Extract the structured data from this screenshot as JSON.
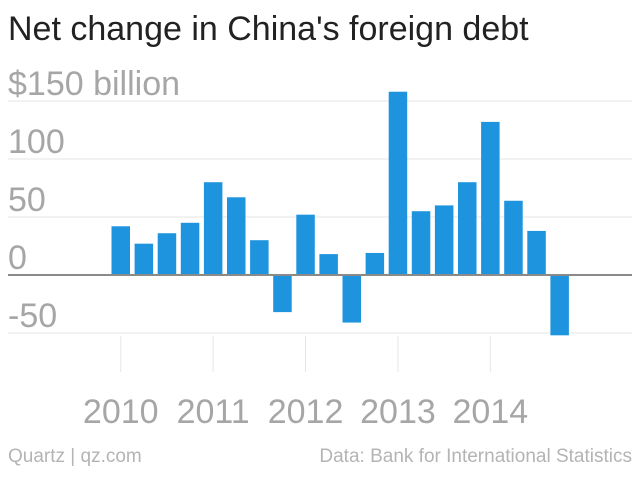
{
  "chart_data": {
    "type": "bar",
    "title": "Net change in China's foreign debt",
    "ylabel": "",
    "xlabel": "",
    "ylim": [
      -60,
      165
    ],
    "y_ticks": [
      {
        "value": 150,
        "label": "$150 billion"
      },
      {
        "value": 100,
        "label": "100"
      },
      {
        "value": 50,
        "label": "50"
      },
      {
        "value": 0,
        "label": "0"
      },
      {
        "value": -50,
        "label": "-50"
      }
    ],
    "x_tick_labels": [
      {
        "label": "2010",
        "at_bar": 0
      },
      {
        "label": "2011",
        "at_bar": 4
      },
      {
        "label": "2012",
        "at_bar": 8
      },
      {
        "label": "2013",
        "at_bar": 12
      },
      {
        "label": "2014",
        "at_bar": 16
      }
    ],
    "values": [
      42,
      27,
      36,
      45,
      80,
      67,
      30,
      -32,
      52,
      18,
      -41,
      19,
      158,
      55,
      60,
      80,
      132,
      64,
      38,
      -52
    ],
    "bar_color": "#1f94de",
    "grid": true
  },
  "footer": {
    "source_left": "Quartz | qz.com",
    "source_right": "Data: Bank for International Statistics"
  },
  "colors": {
    "title": "#222222",
    "axis_label": "#a6a6a6",
    "gridline": "#e6e6e6",
    "zero_line": "#8a8a8a",
    "footer": "#b4b4b4"
  }
}
